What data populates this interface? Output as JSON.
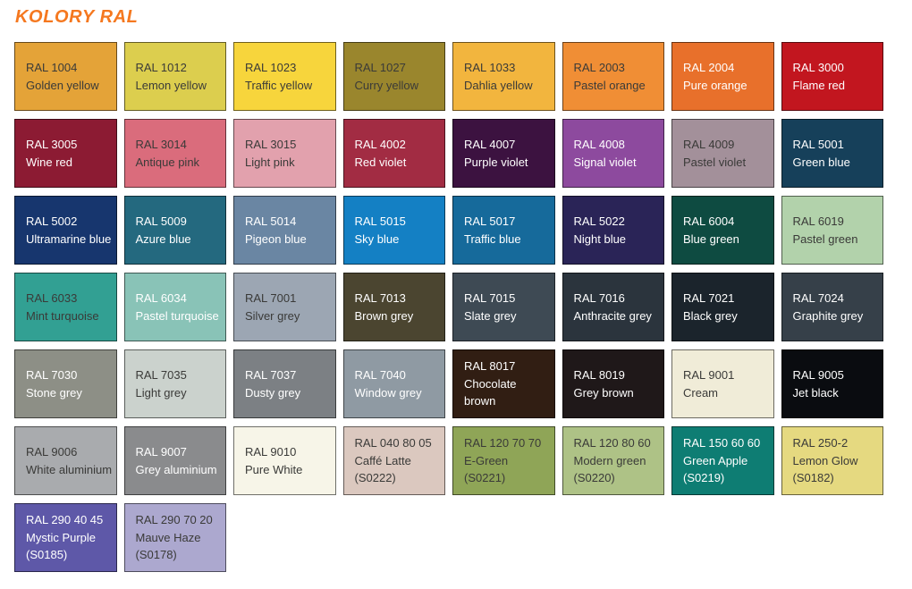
{
  "page": {
    "title": "KOLORY RAL",
    "title_color": "#F5781F",
    "background": "#FFFFFF",
    "text_dark": "#3A3A38",
    "text_light": "#FFFFFF"
  },
  "swatches": [
    {
      "code": "RAL 1004",
      "name": "Golden yellow",
      "suffix": "",
      "hex": "#E4A338",
      "text": "dark"
    },
    {
      "code": "RAL 1012",
      "name": "Lemon yellow",
      "suffix": "",
      "hex": "#DCCE4E",
      "text": "dark"
    },
    {
      "code": "RAL 1023",
      "name": "Traffic yellow",
      "suffix": "",
      "hex": "#F7D53C",
      "text": "dark"
    },
    {
      "code": "RAL 1027",
      "name": "Curry yellow",
      "suffix": "",
      "hex": "#9A862D",
      "text": "dark"
    },
    {
      "code": "RAL 1033",
      "name": "Dahlia yellow",
      "suffix": "",
      "hex": "#F2B53E",
      "text": "dark"
    },
    {
      "code": "RAL 2003",
      "name": "Pastel orange",
      "suffix": "",
      "hex": "#F08E35",
      "text": "dark"
    },
    {
      "code": "RAL 2004",
      "name": "Pure orange",
      "suffix": "",
      "hex": "#E8702B",
      "text": "light"
    },
    {
      "code": "RAL 3000",
      "name": "Flame red",
      "suffix": "",
      "hex": "#C2161F",
      "text": "light"
    },
    {
      "code": "RAL 3005",
      "name": "Wine red",
      "suffix": "",
      "hex": "#8C1B33",
      "text": "light"
    },
    {
      "code": "RAL 3014",
      "name": "Antique pink",
      "suffix": "",
      "hex": "#DA6C7C",
      "text": "dark"
    },
    {
      "code": "RAL 3015",
      "name": "Light pink",
      "suffix": "",
      "hex": "#E2A1AD",
      "text": "dark"
    },
    {
      "code": "RAL 4002",
      "name": "Red violet",
      "suffix": "",
      "hex": "#A22C43",
      "text": "light"
    },
    {
      "code": "RAL 4007",
      "name": "Purple violet",
      "suffix": "",
      "hex": "#3C1240",
      "text": "light"
    },
    {
      "code": "RAL 4008",
      "name": "Signal violet",
      "suffix": "",
      "hex": "#8D4A9E",
      "text": "light"
    },
    {
      "code": "RAL 4009",
      "name": "Pastel violet",
      "suffix": "",
      "hex": "#A3909A",
      "text": "dark"
    },
    {
      "code": "RAL 5001",
      "name": "Green blue",
      "suffix": "",
      "hex": "#16405A",
      "text": "light"
    },
    {
      "code": "RAL 5002",
      "name": "Ultramarine blue",
      "suffix": "",
      "hex": "#17366E",
      "text": "light"
    },
    {
      "code": "RAL 5009",
      "name": "Azure blue",
      "suffix": "",
      "hex": "#24697F",
      "text": "light"
    },
    {
      "code": "RAL 5014",
      "name": "Pigeon blue",
      "suffix": "",
      "hex": "#6A86A3",
      "text": "light"
    },
    {
      "code": "RAL 5015",
      "name": "Sky blue",
      "suffix": "",
      "hex": "#1480C4",
      "text": "light"
    },
    {
      "code": "RAL 5017",
      "name": "Traffic blue",
      "suffix": "",
      "hex": "#166A9B",
      "text": "light"
    },
    {
      "code": "RAL 5022",
      "name": "Night blue",
      "suffix": "",
      "hex": "#2A2457",
      "text": "light"
    },
    {
      "code": "RAL 6004",
      "name": "Blue green",
      "suffix": "",
      "hex": "#0E4B41",
      "text": "light"
    },
    {
      "code": "RAL 6019",
      "name": "Pastel green",
      "suffix": "",
      "hex": "#B2D2AB",
      "text": "dark"
    },
    {
      "code": "RAL 6033",
      "name": "Mint turquoise",
      "suffix": "",
      "hex": "#32A093",
      "text": "dark"
    },
    {
      "code": "RAL 6034",
      "name": "Pastel turquoise",
      "suffix": "",
      "hex": "#89C3B7",
      "text": "light"
    },
    {
      "code": "RAL 7001",
      "name": "Silver grey",
      "suffix": "",
      "hex": "#9CA6B3",
      "text": "dark"
    },
    {
      "code": "RAL 7013",
      "name": "Brown grey",
      "suffix": "",
      "hex": "#4B4530",
      "text": "light"
    },
    {
      "code": "RAL 7015",
      "name": "Slate grey",
      "suffix": "",
      "hex": "#3E4A54",
      "text": "light"
    },
    {
      "code": "RAL 7016",
      "name": "Anthracite grey",
      "suffix": "",
      "hex": "#2B343D",
      "text": "light"
    },
    {
      "code": "RAL 7021",
      "name": "Black grey",
      "suffix": "",
      "hex": "#1B242C",
      "text": "light"
    },
    {
      "code": "RAL 7024",
      "name": "Graphite grey",
      "suffix": "",
      "hex": "#364049",
      "text": "light"
    },
    {
      "code": "RAL 7030",
      "name": "Stone grey",
      "suffix": "",
      "hex": "#8D8F86",
      "text": "light"
    },
    {
      "code": "RAL 7035",
      "name": "Light grey",
      "suffix": "",
      "hex": "#CBD2CD",
      "text": "dark"
    },
    {
      "code": "RAL 7037",
      "name": "Dusty grey",
      "suffix": "",
      "hex": "#7C8084",
      "text": "light"
    },
    {
      "code": "RAL 7040",
      "name": "Window grey",
      "suffix": "",
      "hex": "#8F9AA3",
      "text": "light"
    },
    {
      "code": "RAL 8017",
      "name": "Chocolate brown",
      "suffix": "",
      "hex": "#311E13",
      "text": "light"
    },
    {
      "code": "RAL 8019",
      "name": "Grey brown",
      "suffix": "",
      "hex": "#1F1819",
      "text": "light"
    },
    {
      "code": "RAL 9001",
      "name": "Cream",
      "suffix": "",
      "hex": "#F0ECD8",
      "text": "dark"
    },
    {
      "code": "RAL 9005",
      "name": "Jet black",
      "suffix": "",
      "hex": "#0A0C10",
      "text": "light"
    },
    {
      "code": "RAL 9006",
      "name": "White aluminium",
      "suffix": "",
      "hex": "#A9ABAE",
      "text": "dark"
    },
    {
      "code": "RAL 9007",
      "name": "Grey aluminium",
      "suffix": "",
      "hex": "#8A8B8D",
      "text": "light"
    },
    {
      "code": "RAL 9010",
      "name": "Pure White",
      "suffix": "",
      "hex": "#F7F5E8",
      "text": "dark"
    },
    {
      "code": "RAL 040 80 05",
      "name": "Caffé Latte",
      "suffix": "(S0222)",
      "hex": "#DBC8BF",
      "text": "dark"
    },
    {
      "code": "RAL 120 70 70",
      "name": "E-Green",
      "suffix": "(S0221)",
      "hex": "#8FA557",
      "text": "dark"
    },
    {
      "code": "RAL 120 80 60",
      "name": "Modern green",
      "suffix": "(S0220)",
      "hex": "#AEC286",
      "text": "dark"
    },
    {
      "code": "RAL 150 60 60",
      "name": "Green Apple",
      "suffix": "(S0219)",
      "hex": "#0E7D73",
      "text": "light"
    },
    {
      "code": "RAL 250-2",
      "name": "Lemon Glow",
      "suffix": "(S0182)",
      "hex": "#E5D980",
      "text": "dark"
    },
    {
      "code": "RAL 290 40 45",
      "name": "Mystic Purple",
      "suffix": "(S0185)",
      "hex": "#5E58A8",
      "text": "light"
    },
    {
      "code": "RAL 290 70 20",
      "name": "Mauve Haze",
      "suffix": "(S0178)",
      "hex": "#ACA8CF",
      "text": "dark"
    }
  ]
}
